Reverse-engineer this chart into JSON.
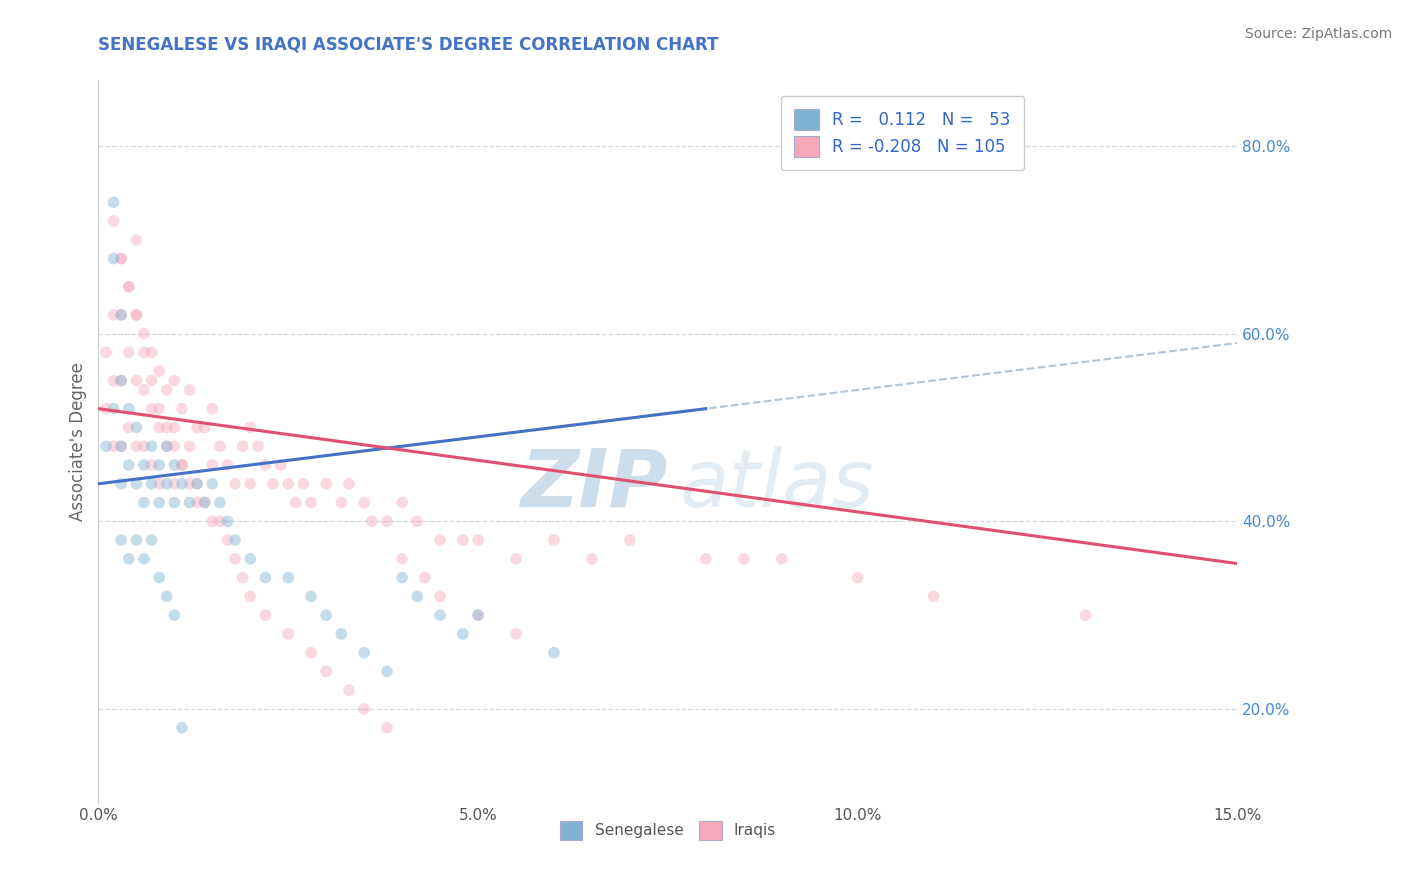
{
  "title": "SENEGALESE VS IRAQI ASSOCIATE'S DEGREE CORRELATION CHART",
  "source_text": "Source: ZipAtlas.com",
  "ylabel": "Associate's Degree",
  "xlim": [
    0.0,
    0.15
  ],
  "ylim": [
    0.1,
    0.87
  ],
  "xticks": [
    0.0,
    0.05,
    0.1,
    0.15
  ],
  "xticklabels": [
    "0.0%",
    "5.0%",
    "10.0%",
    "15.0%"
  ],
  "yticks_right": [
    0.2,
    0.4,
    0.6,
    0.8
  ],
  "yticklabels_right": [
    "20.0%",
    "40.0%",
    "60.0%",
    "80.0%"
  ],
  "senegalese_color": "#7fb3d3",
  "iraqi_color": "#f4a9bb",
  "senegalese_R": 0.112,
  "senegalese_N": 53,
  "iraqi_R": -0.208,
  "iraqi_N": 105,
  "trend_blue_color": "#4472c4",
  "trend_pink_color": "#e05070",
  "dashed_line_color": "#b0c4d8",
  "dashed_line_y": 0.635,
  "grid_color": "#d0d8e0",
  "title_color": "#4472c4",
  "legend_text_color": "#3366cc",
  "axis_tick_color": "#4488cc",
  "background_color": "#ffffff",
  "marker_size": 70,
  "marker_alpha": 0.45,
  "legend_labels": [
    "Senegalese",
    "Iraqis"
  ],
  "blue_trend_x0": 0.0,
  "blue_trend_y0": 0.44,
  "blue_trend_x1": 0.08,
  "blue_trend_y1": 0.52,
  "pink_trend_x0": 0.0,
  "pink_trend_y0": 0.52,
  "pink_trend_x1": 0.15,
  "pink_trend_y1": 0.355,
  "senegalese_x": [
    0.001,
    0.002,
    0.002,
    0.003,
    0.003,
    0.003,
    0.004,
    0.004,
    0.005,
    0.005,
    0.006,
    0.006,
    0.007,
    0.007,
    0.008,
    0.008,
    0.009,
    0.009,
    0.01,
    0.01,
    0.011,
    0.012,
    0.013,
    0.014,
    0.015,
    0.016,
    0.017,
    0.018,
    0.02,
    0.022,
    0.025,
    0.028,
    0.03,
    0.032,
    0.035,
    0.038,
    0.04,
    0.042,
    0.045,
    0.048,
    0.05,
    0.06,
    0.003,
    0.004,
    0.005,
    0.006,
    0.007,
    0.008,
    0.002,
    0.003,
    0.009,
    0.01,
    0.011
  ],
  "senegalese_y": [
    0.48,
    0.68,
    0.52,
    0.55,
    0.48,
    0.44,
    0.52,
    0.46,
    0.5,
    0.44,
    0.46,
    0.42,
    0.48,
    0.44,
    0.46,
    0.42,
    0.48,
    0.44,
    0.46,
    0.42,
    0.44,
    0.42,
    0.44,
    0.42,
    0.44,
    0.42,
    0.4,
    0.38,
    0.36,
    0.34,
    0.34,
    0.32,
    0.3,
    0.28,
    0.26,
    0.24,
    0.34,
    0.32,
    0.3,
    0.28,
    0.3,
    0.26,
    0.38,
    0.36,
    0.38,
    0.36,
    0.38,
    0.34,
    0.74,
    0.62,
    0.32,
    0.3,
    0.18
  ],
  "iraqi_x": [
    0.001,
    0.001,
    0.002,
    0.002,
    0.002,
    0.003,
    0.003,
    0.003,
    0.003,
    0.004,
    0.004,
    0.004,
    0.005,
    0.005,
    0.005,
    0.005,
    0.006,
    0.006,
    0.006,
    0.007,
    0.007,
    0.007,
    0.008,
    0.008,
    0.008,
    0.009,
    0.009,
    0.01,
    0.01,
    0.01,
    0.011,
    0.011,
    0.012,
    0.012,
    0.013,
    0.013,
    0.014,
    0.015,
    0.015,
    0.016,
    0.017,
    0.018,
    0.019,
    0.02,
    0.02,
    0.021,
    0.022,
    0.023,
    0.024,
    0.025,
    0.026,
    0.027,
    0.028,
    0.03,
    0.032,
    0.033,
    0.035,
    0.036,
    0.038,
    0.04,
    0.042,
    0.045,
    0.048,
    0.05,
    0.055,
    0.06,
    0.065,
    0.07,
    0.08,
    0.085,
    0.09,
    0.1,
    0.11,
    0.13,
    0.002,
    0.003,
    0.004,
    0.005,
    0.006,
    0.007,
    0.008,
    0.009,
    0.01,
    0.011,
    0.012,
    0.013,
    0.014,
    0.015,
    0.016,
    0.017,
    0.018,
    0.019,
    0.02,
    0.022,
    0.025,
    0.028,
    0.03,
    0.033,
    0.035,
    0.038,
    0.04,
    0.043,
    0.045,
    0.05,
    0.055
  ],
  "iraqi_y": [
    0.58,
    0.52,
    0.62,
    0.55,
    0.48,
    0.68,
    0.62,
    0.55,
    0.48,
    0.65,
    0.58,
    0.5,
    0.7,
    0.62,
    0.55,
    0.48,
    0.6,
    0.54,
    0.48,
    0.58,
    0.52,
    0.46,
    0.56,
    0.5,
    0.44,
    0.54,
    0.48,
    0.55,
    0.5,
    0.44,
    0.52,
    0.46,
    0.54,
    0.48,
    0.5,
    0.44,
    0.5,
    0.52,
    0.46,
    0.48,
    0.46,
    0.44,
    0.48,
    0.5,
    0.44,
    0.48,
    0.46,
    0.44,
    0.46,
    0.44,
    0.42,
    0.44,
    0.42,
    0.44,
    0.42,
    0.44,
    0.42,
    0.4,
    0.4,
    0.42,
    0.4,
    0.38,
    0.38,
    0.38,
    0.36,
    0.38,
    0.36,
    0.38,
    0.36,
    0.36,
    0.36,
    0.34,
    0.32,
    0.3,
    0.72,
    0.68,
    0.65,
    0.62,
    0.58,
    0.55,
    0.52,
    0.5,
    0.48,
    0.46,
    0.44,
    0.42,
    0.42,
    0.4,
    0.4,
    0.38,
    0.36,
    0.34,
    0.32,
    0.3,
    0.28,
    0.26,
    0.24,
    0.22,
    0.2,
    0.18,
    0.36,
    0.34,
    0.32,
    0.3,
    0.28
  ]
}
